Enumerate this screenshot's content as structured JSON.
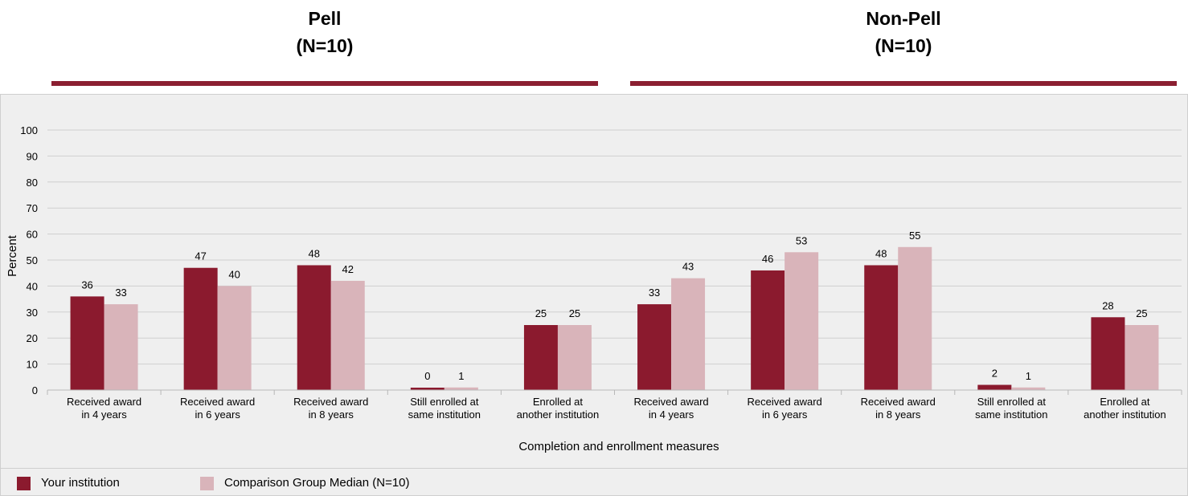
{
  "groups": [
    {
      "title": "Pell",
      "subtitle": "(N=10)"
    },
    {
      "title": "Non-Pell",
      "subtitle": "(N=10)"
    }
  ],
  "colors": {
    "institution": "#8b1a2e",
    "comparison": "#d9b4ba",
    "rule": "#8b1f31"
  },
  "chart_data": {
    "type": "bar",
    "ylabel": "Percent",
    "xlabel": "Completion and enrollment measures",
    "ylim": [
      0,
      100
    ],
    "yticks": [
      0,
      10,
      20,
      30,
      40,
      50,
      60,
      70,
      80,
      90,
      100
    ],
    "grid": true,
    "categories": [
      [
        "Received award",
        "in 4 years"
      ],
      [
        "Received award",
        "in 6 years"
      ],
      [
        "Received award",
        "in 8 years"
      ],
      [
        "Still enrolled at",
        "same institution"
      ],
      [
        "Enrolled at",
        "another institution"
      ],
      [
        "Received award",
        "in 4 years"
      ],
      [
        "Received award",
        "in 6 years"
      ],
      [
        "Received award",
        "in 8 years"
      ],
      [
        "Still enrolled at",
        "same institution"
      ],
      [
        "Enrolled at",
        "another institution"
      ]
    ],
    "series": [
      {
        "name": "Your institution",
        "values": [
          36,
          47,
          48,
          0,
          25,
          33,
          46,
          48,
          2,
          28
        ]
      },
      {
        "name": "Comparison Group Median (N=10)",
        "values": [
          33,
          40,
          42,
          1,
          25,
          43,
          53,
          55,
          1,
          25
        ]
      }
    ]
  }
}
